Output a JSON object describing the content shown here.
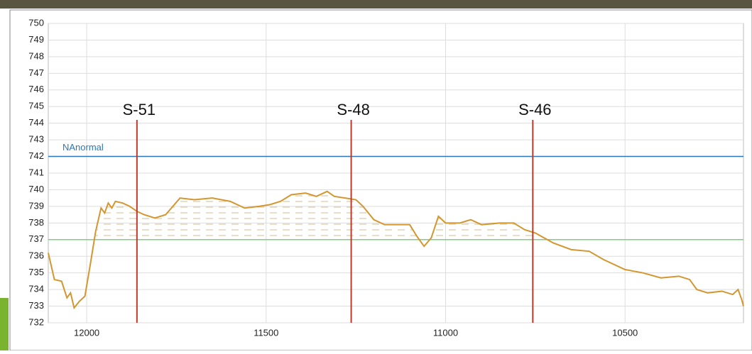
{
  "chart_data": {
    "type": "line",
    "x": [
      12107,
      12090,
      12070,
      12055,
      12045,
      12035,
      12020,
      12005,
      11990,
      11975,
      11960,
      11950,
      11940,
      11930,
      11920,
      11900,
      11880,
      11860,
      11840,
      11810,
      11780,
      11760,
      11740,
      11700,
      11650,
      11600,
      11560,
      11520,
      11490,
      11460,
      11430,
      11390,
      11360,
      11330,
      11310,
      11280,
      11250,
      11230,
      11200,
      11170,
      11130,
      11100,
      11080,
      11060,
      11040,
      11020,
      11000,
      10960,
      10930,
      10900,
      10850,
      10810,
      10780,
      10750,
      10700,
      10650,
      10600,
      10560,
      10500,
      10450,
      10400,
      10350,
      10320,
      10300,
      10270,
      10230,
      10200,
      10185,
      10175,
      10170
    ],
    "series": [
      {
        "color": "#d4962e",
        "values": [
          736.2,
          734.6,
          734.5,
          733.5,
          733.8,
          732.9,
          733.3,
          733.6,
          735.5,
          737.5,
          738.9,
          738.6,
          739.2,
          738.9,
          739.3,
          739.2,
          739.0,
          738.7,
          738.5,
          738.3,
          738.5,
          739.0,
          739.5,
          739.4,
          739.5,
          739.3,
          738.9,
          739.0,
          739.1,
          739.3,
          739.7,
          739.8,
          739.6,
          739.9,
          739.6,
          739.5,
          739.4,
          739.0,
          738.2,
          737.9,
          737.9,
          737.9,
          737.2,
          736.6,
          737.1,
          738.4,
          738.0,
          738.0,
          738.2,
          737.9,
          738.0,
          738.0,
          737.6,
          737.4,
          736.8,
          736.4,
          736.3,
          735.8,
          735.2,
          735.0,
          734.7,
          734.8,
          734.6,
          734.0,
          733.8,
          733.9,
          733.7,
          734.0,
          733.4,
          733.0
        ]
      }
    ],
    "xlim": [
      12107,
      10170
    ],
    "xticks": [
      12000,
      11500,
      11000,
      10500
    ],
    "ylim": [
      732,
      750
    ],
    "yticks": [
      732,
      733,
      734,
      735,
      736,
      737,
      738,
      739,
      740,
      741,
      742,
      743,
      744,
      745,
      746,
      747,
      748,
      749,
      750
    ],
    "grid": true,
    "reference_lines": [
      {
        "name": "NAnormal",
        "value": 742,
        "color": "#2e75b6"
      },
      {
        "value": 737,
        "color": "#7fcf7f"
      }
    ],
    "stations": [
      {
        "label": "S-51",
        "x": 11860
      },
      {
        "label": "S-48",
        "x": 11263
      },
      {
        "label": "S-46",
        "x": 10757
      }
    ],
    "station_top": 744.2,
    "station_color": "#c0392b"
  }
}
